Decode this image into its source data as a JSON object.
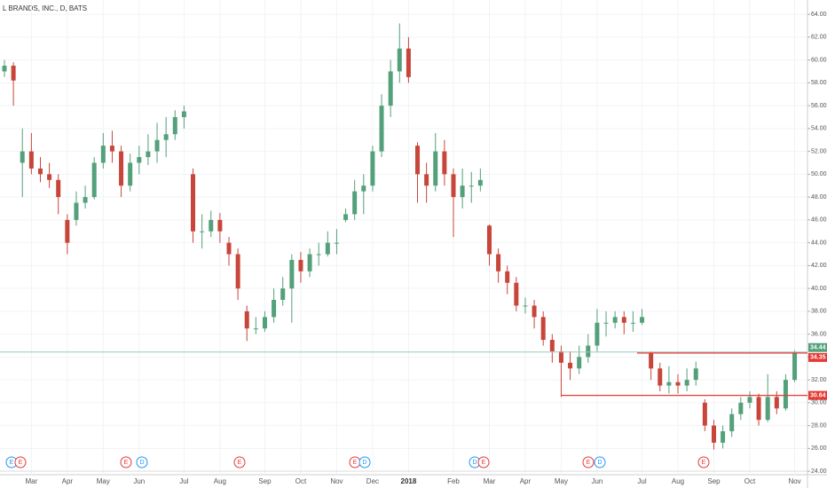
{
  "chart_data": {
    "type": "candlestick",
    "title": "L BRANDS, INC., D, BATS",
    "up_color": "#53a07a",
    "down_color": "#c8453a",
    "categories": [
      null,
      null,
      null,
      "Mar",
      null,
      null,
      null,
      "Apr",
      null,
      null,
      null,
      "May",
      null,
      null,
      null,
      "Jun",
      null,
      null,
      null,
      null,
      "Jul",
      null,
      null,
      null,
      "Aug",
      null,
      null,
      null,
      null,
      "Sep",
      null,
      null,
      null,
      "Oct",
      null,
      null,
      null,
      "Nov",
      null,
      null,
      null,
      "Dec",
      null,
      null,
      null,
      "2018",
      null,
      null,
      null,
      null,
      "Feb",
      null,
      null,
      null,
      "Mar",
      null,
      null,
      null,
      "Apr",
      null,
      null,
      null,
      "May",
      null,
      null,
      null,
      "Jun",
      null,
      null,
      null,
      null,
      "Jul",
      null,
      null,
      null,
      "Aug",
      null,
      null,
      null,
      "Sep",
      null,
      null,
      null,
      "Oct",
      null,
      null,
      null,
      null,
      "Nov"
    ],
    "ohlc": [
      [
        59,
        60,
        58.5,
        59.5
      ],
      [
        59.5,
        59.8,
        56,
        58.2
      ],
      [
        51,
        54,
        48,
        52
      ],
      [
        52,
        53.6,
        50,
        50.5
      ],
      [
        50.5,
        51.5,
        49.3,
        50
      ],
      [
        50,
        51,
        48.8,
        49.5
      ],
      [
        49.5,
        50,
        46.5,
        48
      ],
      [
        46,
        46.5,
        43,
        44
      ],
      [
        46,
        48.5,
        45.5,
        47.5
      ],
      [
        47.5,
        49,
        47,
        48
      ],
      [
        48,
        51.5,
        47.8,
        51
      ],
      [
        51,
        53.6,
        50.5,
        52.5
      ],
      [
        52.5,
        53.8,
        51,
        52
      ],
      [
        52,
        52.5,
        48,
        49
      ],
      [
        49,
        51.8,
        48.5,
        51
      ],
      [
        51,
        52.5,
        50,
        51.5
      ],
      [
        51.5,
        53.5,
        50.8,
        52
      ],
      [
        52,
        54.5,
        51,
        53
      ],
      [
        53,
        55,
        51.5,
        53.5
      ],
      [
        53.5,
        55.6,
        53,
        55
      ],
      [
        55,
        56,
        54,
        55.5
      ],
      [
        50,
        50.5,
        44,
        45
      ],
      [
        45,
        46.5,
        43.5,
        45
      ],
      [
        45,
        46.8,
        44.5,
        46
      ],
      [
        46,
        46.6,
        44,
        45
      ],
      [
        44,
        44.5,
        42,
        43
      ],
      [
        43,
        43.5,
        39,
        40
      ],
      [
        38,
        38.5,
        35.4,
        36.5
      ],
      [
        36.5,
        37.5,
        36,
        36.5
      ],
      [
        36.5,
        38,
        36.2,
        37.5
      ],
      [
        37.5,
        40,
        37,
        39
      ],
      [
        39,
        41,
        38.5,
        40
      ],
      [
        40,
        43,
        37,
        42.5
      ],
      [
        42.5,
        43.2,
        40.5,
        41.5
      ],
      [
        41.5,
        43.5,
        41,
        43
      ],
      [
        43,
        44,
        42,
        43
      ],
      [
        43,
        45,
        42.8,
        44
      ],
      [
        44,
        45.2,
        43,
        44
      ],
      [
        46,
        47,
        45.8,
        46.5
      ],
      [
        46.5,
        49.5,
        46,
        48.5
      ],
      [
        48.5,
        50,
        46.5,
        49
      ],
      [
        49,
        52.5,
        48.5,
        52
      ],
      [
        52,
        57,
        51.5,
        56
      ],
      [
        56,
        60,
        55,
        59
      ],
      [
        59,
        63.2,
        58,
        61
      ],
      [
        61,
        62,
        58,
        58.5
      ],
      [
        52.5,
        52.8,
        47.5,
        50
      ],
      [
        50,
        51,
        47.5,
        49
      ],
      [
        49,
        53.6,
        48.5,
        52
      ],
      [
        52,
        53,
        49,
        50
      ],
      [
        50,
        50.5,
        44.5,
        48
      ],
      [
        48,
        50.5,
        47,
        49
      ],
      [
        49,
        50.2,
        47.5,
        49
      ],
      [
        49,
        50.5,
        48.5,
        49.5
      ],
      [
        45.5,
        45.6,
        42,
        43
      ],
      [
        43,
        43.5,
        40.5,
        41.5
      ],
      [
        41.5,
        42,
        39.5,
        40.5
      ],
      [
        40.5,
        41,
        38,
        38.5
      ],
      [
        38.5,
        39.2,
        37.8,
        38.5
      ],
      [
        38.5,
        39,
        36.5,
        37.5
      ],
      [
        37.5,
        38,
        35,
        35.5
      ],
      [
        35.5,
        36,
        33.5,
        34.5
      ],
      [
        34.5,
        35,
        30.5,
        33.5
      ],
      [
        33.5,
        34.5,
        32,
        33
      ],
      [
        33,
        35,
        32.5,
        34
      ],
      [
        34,
        36,
        33.5,
        35
      ],
      [
        35,
        38.2,
        34.5,
        37
      ],
      [
        37,
        38,
        35.8,
        37
      ],
      [
        37,
        38,
        36.5,
        37.5
      ],
      [
        37.5,
        38,
        36,
        37
      ],
      [
        37,
        38,
        36.2,
        37
      ],
      [
        37,
        38.2,
        36.8,
        37.5
      ],
      [
        34.3,
        34.5,
        32,
        33
      ],
      [
        33,
        33.5,
        31,
        31.5
      ],
      [
        31.5,
        33.2,
        30.8,
        31.8
      ],
      [
        31.8,
        32.5,
        30.8,
        31.5
      ],
      [
        31.5,
        33,
        31,
        32
      ],
      [
        32,
        33.6,
        31.5,
        33
      ],
      [
        30,
        30.3,
        27.5,
        28
      ],
      [
        28,
        28.5,
        25.9,
        26.5
      ],
      [
        26.5,
        28,
        26,
        27.5
      ],
      [
        27.5,
        29.5,
        27,
        29
      ],
      [
        29,
        30.5,
        28.5,
        30
      ],
      [
        30,
        31,
        29.5,
        30.5
      ],
      [
        30.5,
        30.8,
        28,
        28.5
      ],
      [
        28.5,
        32.5,
        28.3,
        30.5
      ],
      [
        30.5,
        31,
        29,
        29.5
      ],
      [
        29.5,
        32.5,
        29.3,
        32
      ],
      [
        32,
        34.6,
        31.8,
        34.4
      ]
    ],
    "ylim": [
      23.7,
      65.25
    ],
    "yticks": [
      {
        "value": 24,
        "label": "24.00"
      },
      {
        "value": 26,
        "label": "26.00"
      },
      {
        "value": 28,
        "label": "28.00"
      },
      {
        "value": 30,
        "label": "30.00"
      },
      {
        "value": 32,
        "label": "32.00"
      },
      {
        "value": 34,
        "label": "34.00"
      },
      {
        "value": 36,
        "label": "36.00"
      },
      {
        "value": 38,
        "label": "38.00"
      },
      {
        "value": 40,
        "label": "40.00"
      },
      {
        "value": 42,
        "label": "42.00"
      },
      {
        "value": 44,
        "label": "44.00"
      },
      {
        "value": 46,
        "label": "46.00"
      },
      {
        "value": 48,
        "label": "48.00"
      },
      {
        "value": 50,
        "label": "50.00"
      },
      {
        "value": 52,
        "label": "52.00"
      },
      {
        "value": 54,
        "label": "54.00"
      },
      {
        "value": 56,
        "label": "56.00"
      },
      {
        "value": 58,
        "label": "58.00"
      },
      {
        "value": 60,
        "label": "60.00"
      },
      {
        "value": 62,
        "label": "62.00"
      },
      {
        "value": 64,
        "label": "64.00"
      }
    ],
    "price_line": {
      "value": 34.44,
      "color": "#53a07a"
    },
    "levels": [
      {
        "value": 34.35,
        "color": "#e53935"
      },
      {
        "value": 30.64,
        "color": "#e53935"
      }
    ],
    "events": [
      {
        "label": "E",
        "color": "#2196f3"
      },
      {
        "label": "E",
        "color": "#e53935"
      },
      {
        "label": "E",
        "color": "#e53935"
      },
      {
        "label": "D",
        "color": "#2196f3"
      },
      {
        "label": "E",
        "color": "#e53935"
      },
      {
        "label": "E",
        "color": "#e53935"
      },
      {
        "label": "D",
        "color": "#2196f3"
      },
      {
        "label": "D",
        "color": "#2196f3"
      },
      {
        "label": "E",
        "color": "#e53935"
      },
      {
        "label": "E",
        "color": "#e53935"
      },
      {
        "label": "D",
        "color": "#2196f3"
      },
      {
        "label": "E",
        "color": "#e53935"
      }
    ]
  }
}
